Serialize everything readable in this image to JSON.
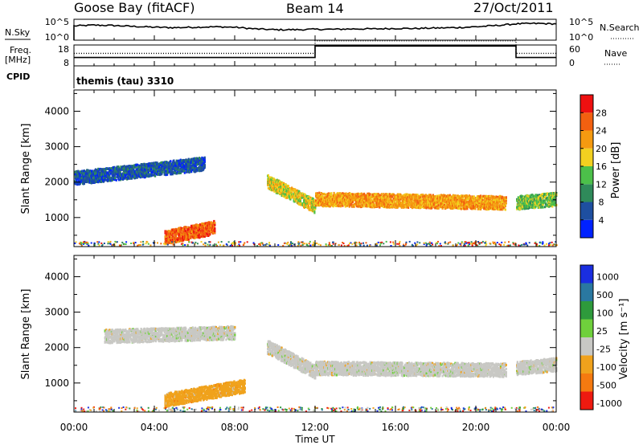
{
  "header": {
    "station": "Goose Bay (fitACF)",
    "beam": "Beam 14",
    "date": "27/Oct/2011"
  },
  "noise_panel": {
    "left_label": "N.Sky",
    "right_label": "N.Search",
    "left_ticks": [
      "10^5",
      "10^0"
    ],
    "right_ticks": [
      "10^5",
      "10^0"
    ]
  },
  "freq_panel": {
    "left_label_line1": "Freq.",
    "left_label_line2": "[MHz]",
    "left_ticks": [
      "18",
      "8"
    ],
    "right_label": "Nave",
    "right_ticks": [
      "60",
      "0"
    ]
  },
  "cpid": {
    "label": "CPID",
    "value": "themis (tau) 3310"
  },
  "power_panel": {
    "ylabel": "Slant Range [km]",
    "yticks": [
      "4000",
      "3000",
      "2000",
      "1000"
    ],
    "colorbar_label": "Power [dB]",
    "colorbar_ticks": [
      "28",
      "24",
      "20",
      "16",
      "12",
      "8",
      "4"
    ],
    "colors": [
      "#0022ff",
      "#1e4fa0",
      "#2f8a5a",
      "#4cc04a",
      "#f2d020",
      "#f59a10",
      "#f26010",
      "#ee1010"
    ]
  },
  "velocity_panel": {
    "ylabel": "Slant Range [km]",
    "yticks": [
      "4000",
      "3000",
      "2000",
      "1000"
    ],
    "colorbar_label": "Velocity [m s⁻¹]",
    "colorbar_ticks": [
      "1000",
      "500",
      "100",
      "25",
      "-25",
      "-100",
      "-500",
      "-1000"
    ],
    "colors": [
      "#1a2ee0",
      "#2a78a0",
      "#2e9a3c",
      "#6fd03c",
      "#c8c8c4",
      "#f0a21c",
      "#f57a10",
      "#ee1a10"
    ]
  },
  "xaxis": {
    "label": "Time UT",
    "ticks": [
      "00:00",
      "04:00",
      "08:00",
      "12:00",
      "16:00",
      "20:00",
      "00:00"
    ]
  },
  "chart_data": [
    {
      "type": "line",
      "title": "Goose Bay (fitACF)",
      "xlabel": "",
      "ylabel": "N.Sky",
      "x_range_hours": [
        0,
        24
      ],
      "series": [
        {
          "name": "N.Sky",
          "x": [
            0,
            1,
            2,
            3,
            4,
            5,
            6,
            7,
            8,
            9,
            10,
            11,
            12,
            13,
            14,
            15,
            16,
            17,
            18,
            19,
            20,
            21,
            22,
            23,
            24
          ],
          "values": [
            3.4,
            3.6,
            3.5,
            3.3,
            3.1,
            3.0,
            3.1,
            3.2,
            3.1,
            2.7,
            2.5,
            2.5,
            2.6,
            2.6,
            2.7,
            2.7,
            2.8,
            2.8,
            2.9,
            3.0,
            3.2,
            3.5,
            3.9,
            4.0,
            3.9
          ]
        },
        {
          "name": "N.Search",
          "x": [
            0,
            24
          ],
          "values": [
            0.1,
            0.1
          ]
        }
      ]
    },
    {
      "type": "line",
      "ylabel": "Freq. [MHz]",
      "series": [
        {
          "name": "Freq.",
          "x": [
            0,
            12,
            12,
            22,
            22,
            24
          ],
          "values": [
            12,
            12,
            17.5,
            17.5,
            12,
            12
          ]
        },
        {
          "name": "Nave",
          "x": [
            0,
            12,
            12,
            22,
            22,
            24
          ],
          "values": [
            14,
            14,
            20,
            20,
            14,
            14
          ]
        }
      ]
    },
    {
      "type": "heatmap",
      "ylabel": "Slant Range [km]",
      "ylim": [
        180,
        4600
      ],
      "xlim_hours": [
        0,
        24
      ],
      "colorbar": "Power [dB]",
      "regions": [
        {
          "t0": 0.0,
          "t1": 6.5,
          "r_start": 2100,
          "r_end": 2500,
          "level": 1
        },
        {
          "t0": 4.5,
          "t1": 7.0,
          "r_start": 420,
          "r_end": 700,
          "level": 6
        },
        {
          "t0": 9.6,
          "t1": 12.0,
          "r_start": 2000,
          "r_end": 1300,
          "level": 4
        },
        {
          "t0": 12.0,
          "t1": 21.5,
          "r_start": 1500,
          "r_end": 1400,
          "level": 5
        },
        {
          "t0": 22.0,
          "t1": 24.0,
          "r_start": 1400,
          "r_end": 1500,
          "level": 3
        }
      ]
    },
    {
      "type": "heatmap",
      "ylabel": "Slant Range [km]",
      "ylim": [
        180,
        4600
      ],
      "xlim_hours": [
        0,
        24
      ],
      "colorbar": "Velocity [m s⁻¹]",
      "regions": [
        {
          "t0": 1.5,
          "t1": 8.0,
          "r_start": 2300,
          "r_end": 2400,
          "level": 4
        },
        {
          "t0": 4.5,
          "t1": 8.5,
          "r_start": 500,
          "r_end": 900,
          "level": 5
        },
        {
          "t0": 9.6,
          "t1": 12.0,
          "r_start": 2000,
          "r_end": 1300,
          "level": 4
        },
        {
          "t0": 12.0,
          "t1": 21.5,
          "r_start": 1400,
          "r_end": 1350,
          "level": 4
        },
        {
          "t0": 22.0,
          "t1": 24.0,
          "r_start": 1400,
          "r_end": 1500,
          "level": 4
        }
      ]
    }
  ]
}
